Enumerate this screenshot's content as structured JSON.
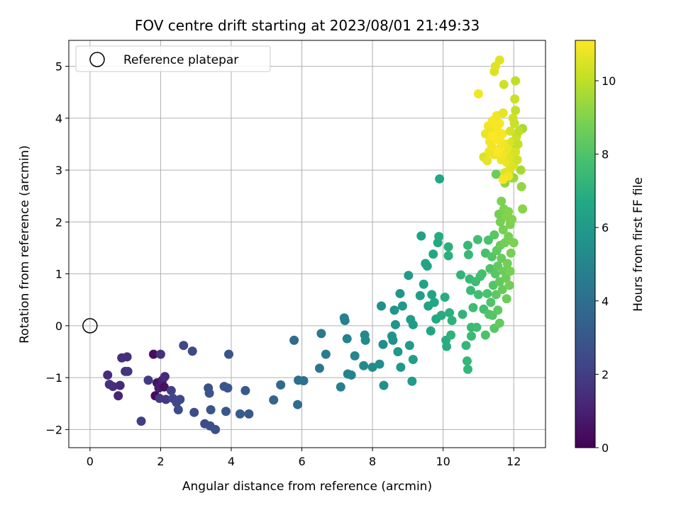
{
  "chart_data": {
    "type": "scatter",
    "title": "FOV centre drift starting at 2023/08/01 21:49:33",
    "xlabel": "Angular distance from reference (arcmin)",
    "ylabel": "Rotation from reference (arcmin)",
    "xlim": [
      -0.6,
      12.9
    ],
    "ylim": [
      -2.35,
      5.5
    ],
    "xticks": [
      0,
      2,
      4,
      6,
      8,
      10,
      12
    ],
    "yticks": [
      -2,
      -1,
      0,
      1,
      2,
      3,
      4,
      5
    ],
    "grid": true,
    "legend": {
      "position": "top-left",
      "entries": [
        "Reference platepar"
      ]
    },
    "reference_point": {
      "label": "Reference platepar",
      "x": 0,
      "y": 0,
      "marker": "hollow-circle"
    },
    "colorbar": {
      "label": "Hours from first FF file",
      "range": [
        0,
        11.1
      ],
      "ticks": [
        0,
        2,
        4,
        6,
        8,
        10
      ],
      "colormap": "viridis"
    },
    "points": [
      {
        "x": 0.5,
        "y": -0.95,
        "c": 1.4
      },
      {
        "x": 0.55,
        "y": -1.13,
        "c": 1.6
      },
      {
        "x": 0.65,
        "y": -1.17,
        "c": 1.5
      },
      {
        "x": 0.8,
        "y": -1.35,
        "c": 1.1
      },
      {
        "x": 0.85,
        "y": -1.15,
        "c": 1.3
      },
      {
        "x": 0.9,
        "y": -0.62,
        "c": 1.5
      },
      {
        "x": 1.0,
        "y": -0.88,
        "c": 1.6
      },
      {
        "x": 1.05,
        "y": -0.6,
        "c": 1.5
      },
      {
        "x": 1.07,
        "y": -0.88,
        "c": 1.7
      },
      {
        "x": 1.45,
        "y": -1.84,
        "c": 2.0
      },
      {
        "x": 1.65,
        "y": -1.05,
        "c": 1.9
      },
      {
        "x": 1.8,
        "y": -0.55,
        "c": 0.4
      },
      {
        "x": 1.85,
        "y": -1.35,
        "c": 0.3
      },
      {
        "x": 1.9,
        "y": -1.1,
        "c": 0.6
      },
      {
        "x": 1.95,
        "y": -1.2,
        "c": 0.9
      },
      {
        "x": 1.97,
        "y": -1.4,
        "c": 1.8
      },
      {
        "x": 2.0,
        "y": -0.55,
        "c": 1.6
      },
      {
        "x": 2.05,
        "y": -1.05,
        "c": 1.0
      },
      {
        "x": 2.1,
        "y": -1.18,
        "c": 0.5
      },
      {
        "x": 2.12,
        "y": -0.98,
        "c": 1.4
      },
      {
        "x": 2.15,
        "y": -1.42,
        "c": 1.8
      },
      {
        "x": 2.3,
        "y": -1.25,
        "c": 2.1
      },
      {
        "x": 2.35,
        "y": -1.4,
        "c": 2.3
      },
      {
        "x": 2.45,
        "y": -1.48,
        "c": 2.4
      },
      {
        "x": 2.5,
        "y": -1.62,
        "c": 2.5
      },
      {
        "x": 2.55,
        "y": -1.42,
        "c": 2.4
      },
      {
        "x": 2.65,
        "y": -0.38,
        "c": 2.3
      },
      {
        "x": 2.9,
        "y": -0.49,
        "c": 2.4
      },
      {
        "x": 2.95,
        "y": -1.67,
        "c": 2.6
      },
      {
        "x": 3.25,
        "y": -1.89,
        "c": 2.5
      },
      {
        "x": 3.35,
        "y": -1.2,
        "c": 2.8
      },
      {
        "x": 3.38,
        "y": -1.3,
        "c": 2.9
      },
      {
        "x": 3.4,
        "y": -1.93,
        "c": 2.6
      },
      {
        "x": 3.42,
        "y": -1.62,
        "c": 2.9
      },
      {
        "x": 3.55,
        "y": -2.0,
        "c": 2.7
      },
      {
        "x": 3.8,
        "y": -1.17,
        "c": 2.9
      },
      {
        "x": 3.85,
        "y": -1.65,
        "c": 3.0
      },
      {
        "x": 3.9,
        "y": -1.2,
        "c": 2.9
      },
      {
        "x": 3.93,
        "y": -0.55,
        "c": 2.9
      },
      {
        "x": 4.25,
        "y": -1.7,
        "c": 3.2
      },
      {
        "x": 4.4,
        "y": -1.25,
        "c": 3.1
      },
      {
        "x": 4.5,
        "y": -1.7,
        "c": 3.1
      },
      {
        "x": 5.2,
        "y": -1.43,
        "c": 3.6
      },
      {
        "x": 5.4,
        "y": -1.14,
        "c": 3.8
      },
      {
        "x": 5.78,
        "y": -0.28,
        "c": 3.9
      },
      {
        "x": 5.88,
        "y": -1.52,
        "c": 3.9
      },
      {
        "x": 5.9,
        "y": -1.05,
        "c": 4.0
      },
      {
        "x": 6.05,
        "y": -1.06,
        "c": 4.1
      },
      {
        "x": 6.5,
        "y": -0.82,
        "c": 4.3
      },
      {
        "x": 6.55,
        "y": -0.15,
        "c": 4.5
      },
      {
        "x": 6.68,
        "y": -0.55,
        "c": 4.6
      },
      {
        "x": 7.1,
        "y": -1.18,
        "c": 4.7
      },
      {
        "x": 7.2,
        "y": 0.15,
        "c": 4.7
      },
      {
        "x": 7.22,
        "y": 0.1,
        "c": 4.8
      },
      {
        "x": 7.28,
        "y": -0.25,
        "c": 4.9
      },
      {
        "x": 7.3,
        "y": -0.93,
        "c": 4.9
      },
      {
        "x": 7.4,
        "y": -0.95,
        "c": 5.0
      },
      {
        "x": 7.5,
        "y": -0.58,
        "c": 5.1
      },
      {
        "x": 7.75,
        "y": -0.77,
        "c": 5.2
      },
      {
        "x": 7.78,
        "y": -0.18,
        "c": 5.2
      },
      {
        "x": 7.8,
        "y": -0.28,
        "c": 5.3
      },
      {
        "x": 8.0,
        "y": -0.8,
        "c": 5.3
      },
      {
        "x": 8.2,
        "y": -0.74,
        "c": 5.4
      },
      {
        "x": 8.25,
        "y": 0.38,
        "c": 5.5
      },
      {
        "x": 8.3,
        "y": -0.36,
        "c": 5.4
      },
      {
        "x": 8.32,
        "y": -1.15,
        "c": 5.5
      },
      {
        "x": 8.55,
        "y": -0.2,
        "c": 5.6
      },
      {
        "x": 8.58,
        "y": -0.28,
        "c": 5.6
      },
      {
        "x": 8.62,
        "y": 0.3,
        "c": 5.7
      },
      {
        "x": 8.65,
        "y": 0.02,
        "c": 5.7
      },
      {
        "x": 8.72,
        "y": -0.5,
        "c": 5.8
      },
      {
        "x": 8.78,
        "y": 0.62,
        "c": 5.8
      },
      {
        "x": 8.8,
        "y": -0.8,
        "c": 5.8
      },
      {
        "x": 8.85,
        "y": 0.38,
        "c": 5.9
      },
      {
        "x": 9.02,
        "y": 0.97,
        "c": 6.0
      },
      {
        "x": 9.05,
        "y": -0.38,
        "c": 6.0
      },
      {
        "x": 9.08,
        "y": 0.12,
        "c": 6.1
      },
      {
        "x": 9.12,
        "y": -1.07,
        "c": 6.1
      },
      {
        "x": 9.15,
        "y": 0.02,
        "c": 6.1
      },
      {
        "x": 9.15,
        "y": -0.65,
        "c": 6.2
      },
      {
        "x": 9.35,
        "y": 0.58,
        "c": 6.2
      },
      {
        "x": 9.38,
        "y": 1.73,
        "c": 6.3
      },
      {
        "x": 9.45,
        "y": 0.8,
        "c": 6.3
      },
      {
        "x": 9.5,
        "y": 1.2,
        "c": 6.4
      },
      {
        "x": 9.55,
        "y": 1.15,
        "c": 6.4
      },
      {
        "x": 9.58,
        "y": 0.38,
        "c": 6.4
      },
      {
        "x": 9.65,
        "y": -0.1,
        "c": 6.5
      },
      {
        "x": 9.68,
        "y": 0.6,
        "c": 6.5
      },
      {
        "x": 9.72,
        "y": 1.38,
        "c": 6.6
      },
      {
        "x": 9.75,
        "y": 0.45,
        "c": 6.6
      },
      {
        "x": 9.8,
        "y": 0.13,
        "c": 6.7
      },
      {
        "x": 9.85,
        "y": 1.6,
        "c": 6.7
      },
      {
        "x": 9.88,
        "y": 1.72,
        "c": 6.8
      },
      {
        "x": 9.9,
        "y": 2.83,
        "c": 6.6
      },
      {
        "x": 9.95,
        "y": 0.2,
        "c": 6.8
      },
      {
        "x": 10.05,
        "y": 0.55,
        "c": 6.9
      },
      {
        "x": 10.08,
        "y": -0.28,
        "c": 6.9
      },
      {
        "x": 10.1,
        "y": -0.4,
        "c": 6.9
      },
      {
        "x": 10.15,
        "y": 1.35,
        "c": 7.0
      },
      {
        "x": 10.15,
        "y": 1.52,
        "c": 7.0
      },
      {
        "x": 10.18,
        "y": 0.25,
        "c": 7.0
      },
      {
        "x": 10.22,
        "y": -0.18,
        "c": 7.1
      },
      {
        "x": 10.25,
        "y": 0.1,
        "c": 7.1
      },
      {
        "x": 10.5,
        "y": 0.98,
        "c": 7.2
      },
      {
        "x": 10.55,
        "y": 0.22,
        "c": 7.2
      },
      {
        "x": 10.65,
        "y": -0.38,
        "c": 7.3
      },
      {
        "x": 10.68,
        "y": -0.68,
        "c": 7.3
      },
      {
        "x": 10.7,
        "y": -0.84,
        "c": 7.3
      },
      {
        "x": 10.7,
        "y": 1.55,
        "c": 7.4
      },
      {
        "x": 10.72,
        "y": 1.37,
        "c": 7.4
      },
      {
        "x": 10.75,
        "y": 0.9,
        "c": 7.4
      },
      {
        "x": 10.78,
        "y": 0.68,
        "c": 7.5
      },
      {
        "x": 10.8,
        "y": -0.2,
        "c": 7.5
      },
      {
        "x": 10.8,
        "y": -0.03,
        "c": 7.5
      },
      {
        "x": 10.85,
        "y": 0.35,
        "c": 7.6
      },
      {
        "x": 10.92,
        "y": 0.85,
        "c": 7.6
      },
      {
        "x": 10.95,
        "y": -0.03,
        "c": 7.6
      },
      {
        "x": 10.98,
        "y": 1.66,
        "c": 7.7
      },
      {
        "x": 11.0,
        "y": 0.6,
        "c": 7.7
      },
      {
        "x": 11.05,
        "y": 0.95,
        "c": 7.7
      },
      {
        "x": 11.1,
        "y": 1.0,
        "c": 7.8
      },
      {
        "x": 11.15,
        "y": 0.32,
        "c": 7.8
      },
      {
        "x": 11.2,
        "y": 1.4,
        "c": 7.8
      },
      {
        "x": 11.2,
        "y": -0.18,
        "c": 7.9
      },
      {
        "x": 11.25,
        "y": 0.62,
        "c": 7.9
      },
      {
        "x": 11.28,
        "y": 1.65,
        "c": 7.9
      },
      {
        "x": 11.3,
        "y": 0.22,
        "c": 8.0
      },
      {
        "x": 11.33,
        "y": 1.1,
        "c": 8.0
      },
      {
        "x": 11.35,
        "y": 0.45,
        "c": 8.0
      },
      {
        "x": 11.38,
        "y": 1.33,
        "c": 8.1
      },
      {
        "x": 11.4,
        "y": 0.2,
        "c": 8.1
      },
      {
        "x": 11.42,
        "y": 0.78,
        "c": 8.1
      },
      {
        "x": 11.45,
        "y": 1.75,
        "c": 8.2
      },
      {
        "x": 11.45,
        "y": -0.05,
        "c": 8.2
      },
      {
        "x": 11.48,
        "y": 1.0,
        "c": 8.2
      },
      {
        "x": 11.5,
        "y": 2.92,
        "c": 8.6
      },
      {
        "x": 11.5,
        "y": 0.6,
        "c": 8.3
      },
      {
        "x": 11.52,
        "y": 1.45,
        "c": 8.3
      },
      {
        "x": 11.55,
        "y": 0.3,
        "c": 8.3
      },
      {
        "x": 11.55,
        "y": 1.15,
        "c": 8.4
      },
      {
        "x": 11.58,
        "y": 2.15,
        "c": 8.7
      },
      {
        "x": 11.6,
        "y": 0.05,
        "c": 8.4
      },
      {
        "x": 11.6,
        "y": 0.85,
        "c": 8.4
      },
      {
        "x": 11.62,
        "y": 2.0,
        "c": 8.8
      },
      {
        "x": 11.62,
        "y": 1.55,
        "c": 8.5
      },
      {
        "x": 11.65,
        "y": 2.4,
        "c": 8.9
      },
      {
        "x": 11.65,
        "y": 1.3,
        "c": 8.5
      },
      {
        "x": 11.68,
        "y": 0.7,
        "c": 8.5
      },
      {
        "x": 11.7,
        "y": 1.85,
        "c": 8.8
      },
      {
        "x": 11.72,
        "y": 2.25,
        "c": 8.9
      },
      {
        "x": 11.72,
        "y": 1.05,
        "c": 8.6
      },
      {
        "x": 11.75,
        "y": 2.75,
        "c": 9.2
      },
      {
        "x": 11.75,
        "y": 1.6,
        "c": 8.7
      },
      {
        "x": 11.78,
        "y": 0.92,
        "c": 8.6
      },
      {
        "x": 11.8,
        "y": 0.52,
        "c": 8.6
      },
      {
        "x": 11.8,
        "y": 2.1,
        "c": 9.0
      },
      {
        "x": 11.82,
        "y": 1.2,
        "c": 8.7
      },
      {
        "x": 11.85,
        "y": 1.72,
        "c": 8.8
      },
      {
        "x": 11.85,
        "y": 2.2,
        "c": 9.0
      },
      {
        "x": 11.88,
        "y": 0.78,
        "c": 8.7
      },
      {
        "x": 11.9,
        "y": 1.95,
        "c": 8.9
      },
      {
        "x": 11.9,
        "y": 1.05,
        "c": 8.8
      },
      {
        "x": 11.92,
        "y": 1.4,
        "c": 8.8
      },
      {
        "x": 11.95,
        "y": 2.05,
        "c": 9.0
      },
      {
        "x": 11.95,
        "y": 2.85,
        "c": 9.4
      },
      {
        "x": 12.0,
        "y": 1.6,
        "c": 8.9
      },
      {
        "x": 12.0,
        "y": 2.85,
        "c": 9.4
      },
      {
        "x": 12.05,
        "y": 3.45,
        "c": 9.8
      },
      {
        "x": 12.2,
        "y": 3.0,
        "c": 9.6
      },
      {
        "x": 12.22,
        "y": 2.68,
        "c": 9.3
      },
      {
        "x": 12.25,
        "y": 2.25,
        "c": 9.1
      },
      {
        "x": 12.25,
        "y": 3.8,
        "c": 9.6
      },
      {
        "x": 11.15,
        "y": 3.25,
        "c": 10.4
      },
      {
        "x": 11.2,
        "y": 3.7,
        "c": 10.8
      },
      {
        "x": 11.25,
        "y": 3.18,
        "c": 10.7
      },
      {
        "x": 11.28,
        "y": 3.85,
        "c": 10.9
      },
      {
        "x": 11.3,
        "y": 3.35,
        "c": 10.8
      },
      {
        "x": 11.32,
        "y": 3.55,
        "c": 10.9
      },
      {
        "x": 11.35,
        "y": 3.78,
        "c": 10.8
      },
      {
        "x": 11.38,
        "y": 3.45,
        "c": 10.9
      },
      {
        "x": 11.4,
        "y": 3.95,
        "c": 11.0
      },
      {
        "x": 11.42,
        "y": 3.65,
        "c": 10.9
      },
      {
        "x": 11.45,
        "y": 3.3,
        "c": 10.8
      },
      {
        "x": 11.48,
        "y": 3.88,
        "c": 11.0
      },
      {
        "x": 11.5,
        "y": 3.6,
        "c": 11.0
      },
      {
        "x": 11.52,
        "y": 4.05,
        "c": 10.9
      },
      {
        "x": 11.55,
        "y": 3.75,
        "c": 11.0
      },
      {
        "x": 11.58,
        "y": 3.4,
        "c": 10.9
      },
      {
        "x": 11.6,
        "y": 3.9,
        "c": 11.0
      },
      {
        "x": 11.62,
        "y": 3.55,
        "c": 11.0
      },
      {
        "x": 11.65,
        "y": 3.2,
        "c": 10.8
      },
      {
        "x": 11.68,
        "y": 3.7,
        "c": 11.0
      },
      {
        "x": 11.7,
        "y": 4.1,
        "c": 10.7
      },
      {
        "x": 11.72,
        "y": 3.3,
        "c": 10.9
      },
      {
        "x": 11.75,
        "y": 2.95,
        "c": 10.6
      },
      {
        "x": 11.78,
        "y": 3.5,
        "c": 10.9
      },
      {
        "x": 11.8,
        "y": 3.15,
        "c": 10.8
      },
      {
        "x": 11.85,
        "y": 3.4,
        "c": 10.8
      },
      {
        "x": 11.88,
        "y": 3.0,
        "c": 10.6
      },
      {
        "x": 11.9,
        "y": 3.75,
        "c": 10.4
      },
      {
        "x": 11.92,
        "y": 3.25,
        "c": 10.6
      },
      {
        "x": 11.95,
        "y": 3.55,
        "c": 10.5
      },
      {
        "x": 11.98,
        "y": 4.0,
        "c": 10.3
      },
      {
        "x": 12.0,
        "y": 3.1,
        "c": 10.5
      },
      {
        "x": 12.02,
        "y": 3.9,
        "c": 10.2
      },
      {
        "x": 12.05,
        "y": 3.35,
        "c": 10.4
      },
      {
        "x": 12.08,
        "y": 3.65,
        "c": 10.2
      },
      {
        "x": 12.1,
        "y": 3.2,
        "c": 10.3
      },
      {
        "x": 12.12,
        "y": 3.5,
        "c": 10.1
      },
      {
        "x": 12.15,
        "y": 3.75,
        "c": 10.0
      },
      {
        "x": 12.05,
        "y": 4.15,
        "c": 10.1
      },
      {
        "x": 12.03,
        "y": 4.37,
        "c": 10.2
      },
      {
        "x": 12.05,
        "y": 4.72,
        "c": 10.0
      },
      {
        "x": 11.72,
        "y": 4.65,
        "c": 10.3
      },
      {
        "x": 11.45,
        "y": 4.9,
        "c": 10.5
      },
      {
        "x": 11.48,
        "y": 5.0,
        "c": 10.6
      },
      {
        "x": 11.6,
        "y": 5.12,
        "c": 10.6
      },
      {
        "x": 11.0,
        "y": 4.47,
        "c": 10.9
      },
      {
        "x": 11.85,
        "y": 2.88,
        "c": 10.9
      },
      {
        "x": 11.7,
        "y": 2.82,
        "c": 11.0
      },
      {
        "x": 11.4,
        "y": 3.65,
        "c": 11.1
      },
      {
        "x": 11.55,
        "y": 3.35,
        "c": 11.1
      }
    ]
  }
}
